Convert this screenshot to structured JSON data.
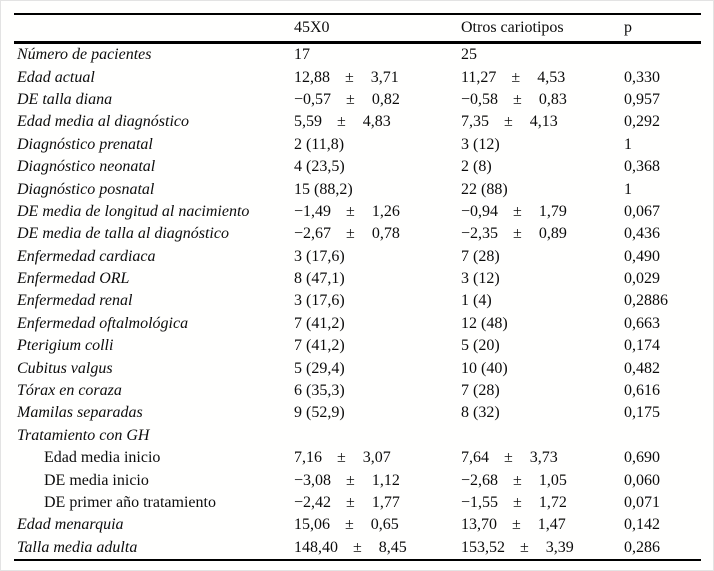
{
  "table": {
    "header": {
      "label": "",
      "col1": "45X0",
      "col2": "Otros cariotipos",
      "p": "p"
    },
    "plus_minus_symbol": "±",
    "text_color": "#0c0c0c",
    "rule_color": "#000000",
    "rows": [
      {
        "label": "Número de pacientes",
        "italic": true,
        "indent": false,
        "v1": [
          "17"
        ],
        "v2": [
          "25"
        ],
        "p": ""
      },
      {
        "label": "Edad actual",
        "italic": true,
        "indent": false,
        "v1": [
          "12,88",
          "±",
          "3,71"
        ],
        "v2": [
          "11,27",
          "±",
          "4,53"
        ],
        "p": "0,330"
      },
      {
        "label": "DE talla diana",
        "italic": true,
        "indent": false,
        "v1": [
          "−0,57",
          "±",
          "0,82"
        ],
        "v2": [
          "−0,58",
          "±",
          "0,83"
        ],
        "p": "0,957"
      },
      {
        "label": "Edad media al diagnóstico",
        "italic": true,
        "indent": false,
        "v1": [
          "5,59",
          "±",
          "4,83"
        ],
        "v2": [
          "7,35",
          "±",
          "4,13"
        ],
        "p": "0,292"
      },
      {
        "label": "Diagnóstico prenatal",
        "italic": true,
        "indent": false,
        "v1": [
          "2 (11,8)"
        ],
        "v2": [
          "3 (12)"
        ],
        "p": "1"
      },
      {
        "label": "Diagnóstico neonatal",
        "italic": true,
        "indent": false,
        "v1": [
          "4 (23,5)"
        ],
        "v2": [
          "2 (8)"
        ],
        "p": "0,368"
      },
      {
        "label": "Diagnóstico posnatal",
        "italic": true,
        "indent": false,
        "v1": [
          "15 (88,2)"
        ],
        "v2": [
          "22 (88)"
        ],
        "p": "1"
      },
      {
        "label": "DE media de longitud al nacimiento",
        "italic": true,
        "indent": false,
        "v1": [
          "−1,49",
          "±",
          "1,26"
        ],
        "v2": [
          "−0,94",
          "±",
          "1,79"
        ],
        "p": "0,067"
      },
      {
        "label": "DE media de talla al diagnóstico",
        "italic": true,
        "indent": false,
        "v1": [
          "−2,67",
          "±",
          "0,78"
        ],
        "v2": [
          "−2,35",
          "±",
          "0,89"
        ],
        "p": "0,436"
      },
      {
        "label": "Enfermedad cardiaca",
        "italic": true,
        "indent": false,
        "v1": [
          "3 (17,6)"
        ],
        "v2": [
          "7 (28)"
        ],
        "p": "0,490"
      },
      {
        "label": "Enfermedad ORL",
        "italic": true,
        "indent": false,
        "v1": [
          "8 (47,1)"
        ],
        "v2": [
          "3 (12)"
        ],
        "p": "0,029"
      },
      {
        "label": "Enfermedad renal",
        "italic": true,
        "indent": false,
        "v1": [
          "3 (17,6)"
        ],
        "v2": [
          "1 (4)"
        ],
        "p": "0,2886"
      },
      {
        "label": "Enfermedad oftalmológica",
        "italic": true,
        "indent": false,
        "v1": [
          "7 (41,2)"
        ],
        "v2": [
          "12 (48)"
        ],
        "p": "0,663"
      },
      {
        "label": "Pterigium colli",
        "italic": true,
        "indent": false,
        "v1": [
          "7 (41,2)"
        ],
        "v2": [
          "5 (20)"
        ],
        "p": "0,174"
      },
      {
        "label": "Cubitus valgus",
        "italic": true,
        "indent": false,
        "v1": [
          "5 (29,4)"
        ],
        "v2": [
          "10 (40)"
        ],
        "p": "0,482"
      },
      {
        "label": "Tórax en coraza",
        "italic": true,
        "indent": false,
        "v1": [
          "6 (35,3)"
        ],
        "v2": [
          "7 (28)"
        ],
        "p": "0,616"
      },
      {
        "label": "Mamilas separadas",
        "italic": true,
        "indent": false,
        "v1": [
          "9 (52,9)"
        ],
        "v2": [
          "8 (32)"
        ],
        "p": "0,175"
      },
      {
        "label": "Tratamiento con GH",
        "italic": true,
        "indent": false,
        "v1": [],
        "v2": [],
        "p": ""
      },
      {
        "label": "Edad media inicio",
        "italic": false,
        "indent": true,
        "v1": [
          "7,16",
          "±",
          "3,07"
        ],
        "v2": [
          "7,64",
          "±",
          "3,73"
        ],
        "p": "0,690"
      },
      {
        "label": "DE media inicio",
        "italic": false,
        "indent": true,
        "v1": [
          "−3,08",
          "±",
          "1,12"
        ],
        "v2": [
          "−2,68",
          "±",
          "1,05"
        ],
        "p": "0,060"
      },
      {
        "label": "DE primer año tratamiento",
        "italic": false,
        "indent": true,
        "v1": [
          "−2,42",
          "±",
          "1,77"
        ],
        "v2": [
          "−1,55",
          "±",
          "1,72"
        ],
        "p": "0,071"
      },
      {
        "label": "Edad menarquia",
        "italic": true,
        "indent": false,
        "v1": [
          "15,06",
          "±",
          "0,65"
        ],
        "v2": [
          "13,70",
          "±",
          "1,47"
        ],
        "p": "0,142"
      },
      {
        "label": "Talla media adulta",
        "italic": true,
        "indent": false,
        "v1": [
          "148,40",
          "±",
          "8,45"
        ],
        "v2": [
          "153,52",
          "±",
          "3,39"
        ],
        "p": "0,286"
      }
    ]
  }
}
